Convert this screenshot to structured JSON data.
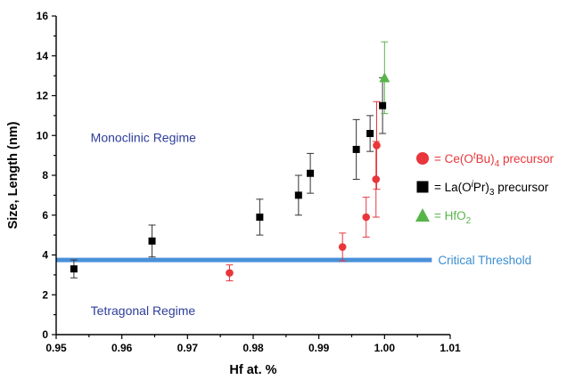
{
  "chart_data": {
    "type": "scatter",
    "title": "",
    "xlabel": "Hf at. %",
    "ylabel": "Size, Length (nm)",
    "xlim": [
      0.95,
      1.01
    ],
    "ylim": [
      0,
      16
    ],
    "x_ticks": [
      "0.95",
      "0.96",
      "0.97",
      "0.98",
      "0.99",
      "1.00",
      "1.01"
    ],
    "y_ticks": [
      "0",
      "2",
      "4",
      "6",
      "8",
      "10",
      "12",
      "14",
      "16"
    ],
    "grid": false,
    "series": [
      {
        "name": "= Ce(OtBu)4 precursor",
        "marker": "circle",
        "color": "#e8363b",
        "points": [
          {
            "x": 0.9764,
            "y": 3.1,
            "err": 0.4
          },
          {
            "x": 0.9936,
            "y": 4.4,
            "err": 0.7
          },
          {
            "x": 0.9972,
            "y": 5.9,
            "err": 1.0
          },
          {
            "x": 0.9987,
            "y": 7.8,
            "err": 1.9
          },
          {
            "x": 0.9988,
            "y": 9.5,
            "err": 2.2
          }
        ]
      },
      {
        "name": "= La(OiPr)3 precursor",
        "marker": "square",
        "color": "#000000",
        "points": [
          {
            "x": 0.9527,
            "y": 3.3,
            "err": 0.45
          },
          {
            "x": 0.9646,
            "y": 4.7,
            "err": 0.8
          },
          {
            "x": 0.981,
            "y": 5.9,
            "err": 0.9
          },
          {
            "x": 0.9869,
            "y": 7.0,
            "err": 1.0
          },
          {
            "x": 0.9887,
            "y": 8.1,
            "err": 1.0
          },
          {
            "x": 0.9957,
            "y": 9.3,
            "err": 1.5
          },
          {
            "x": 0.9978,
            "y": 10.1,
            "err": 0.9
          },
          {
            "x": 0.9997,
            "y": 11.5,
            "err": 1.4
          }
        ]
      },
      {
        "name": "= HfO2",
        "marker": "triangle",
        "color": "#57b548",
        "points": [
          {
            "x": 1.0,
            "y": 12.9,
            "err": 1.8
          }
        ]
      }
    ],
    "legend": {
      "placement": "right",
      "items": [
        {
          "prefix": "= Ce(O",
          "sup": "t",
          "mid": "Bu)",
          "sub": "4",
          "suffix": " precursor",
          "color": "#e8363b",
          "marker": "circle"
        },
        {
          "prefix": "= La(O",
          "sup": "i",
          "mid": "Pr)",
          "sub": "3",
          "suffix": " precursor",
          "color": "#000000",
          "marker": "square"
        },
        {
          "prefix": "= HfO",
          "sup": "",
          "mid": "",
          "sub": "2",
          "suffix": "",
          "color": "#57b548",
          "marker": "triangle"
        }
      ]
    },
    "threshold": {
      "y": 3.75,
      "x_start": 0.95,
      "x_end": 1.0072,
      "label": "Critical Threshold",
      "color": "#4a90d9"
    },
    "annotations": [
      {
        "text": "Monoclinic Regime",
        "x": 0.9505,
        "y": 9.9,
        "color": "#2e3d9a"
      },
      {
        "text": "Tetragonal Regime",
        "x": 0.9505,
        "y": 1.2,
        "color": "#2e3d9a"
      }
    ]
  }
}
